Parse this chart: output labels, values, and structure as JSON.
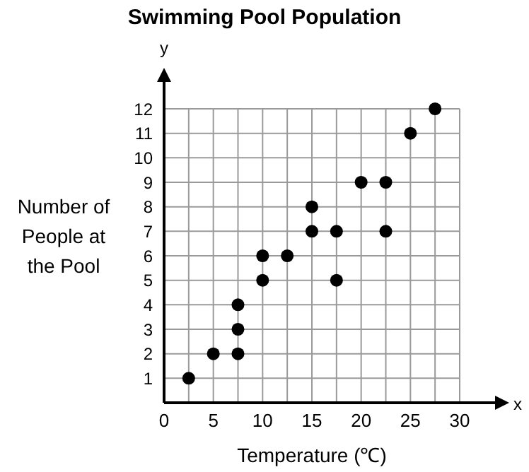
{
  "chart_data": {
    "type": "scatter",
    "title": "Swimming Pool Population",
    "xlabel": "Temperature (℃)",
    "ylabel": "Number of People at the Pool",
    "annotations": [
      "x",
      "y"
    ],
    "x": [
      2.5,
      5,
      7.5,
      7.5,
      7.5,
      10,
      10,
      12.5,
      15,
      15,
      17.5,
      17.5,
      20,
      22.5,
      22.5,
      25,
      27.5
    ],
    "series": [
      {
        "color": "#000000",
        "values": [
          1,
          2,
          2,
          3,
          4,
          5,
          6,
          6,
          7,
          8,
          5,
          7,
          9,
          9,
          7,
          11,
          12
        ]
      }
    ],
    "xlim": [
      0,
      30
    ],
    "xticks": [
      0,
      {
        "value": 2.5,
        "label": null
      },
      5,
      {
        "value": 7.5,
        "label": null
      },
      10,
      {
        "value": 12.5,
        "label": null
      },
      15,
      {
        "value": 17.5,
        "label": null
      },
      20,
      {
        "value": 22.5,
        "label": null
      },
      25,
      {
        "value": 27.5,
        "label": null
      },
      30
    ],
    "ylim": [
      0,
      12
    ],
    "yticks": [
      1,
      2,
      3,
      4,
      5,
      6,
      7,
      8,
      9,
      10,
      11,
      12
    ],
    "grid": true,
    "marker": "circle",
    "legend": false
  }
}
